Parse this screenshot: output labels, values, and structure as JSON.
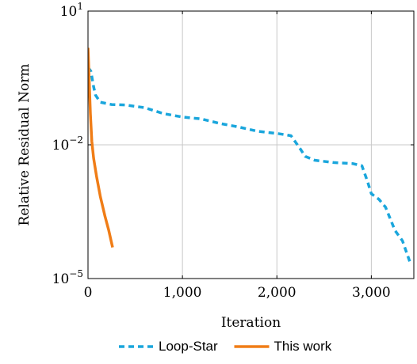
{
  "chart_data": {
    "type": "line",
    "xlabel": "Iteration",
    "ylabel": "Relative Residual Norm",
    "xlim": [
      0,
      3450
    ],
    "ylim": [
      1e-05,
      10
    ],
    "yscale": "log",
    "grid": true,
    "x_ticks": [
      {
        "value": 0,
        "label": "0"
      },
      {
        "value": 1000,
        "label": "1,000"
      },
      {
        "value": 2000,
        "label": "2,000"
      },
      {
        "value": 3000,
        "label": "3,000"
      }
    ],
    "y_ticks": [
      {
        "value": 10,
        "base": "10",
        "exp": "1"
      },
      {
        "value": 0.01,
        "base": "10",
        "exp": "−2"
      },
      {
        "value": 1e-05,
        "base": "10",
        "exp": "−5"
      }
    ],
    "legend_position": "bottom",
    "series": [
      {
        "name": "Loop-Star",
        "color": "#1aa6dc",
        "style": "dashed",
        "points": [
          [
            0,
            0.55
          ],
          [
            30,
            0.45
          ],
          [
            60,
            0.2
          ],
          [
            80,
            0.13
          ],
          [
            130,
            0.09
          ],
          [
            250,
            0.08
          ],
          [
            400,
            0.078
          ],
          [
            600,
            0.068
          ],
          [
            800,
            0.05
          ],
          [
            1000,
            0.042
          ],
          [
            1200,
            0.038
          ],
          [
            1400,
            0.03
          ],
          [
            1600,
            0.025
          ],
          [
            1800,
            0.02
          ],
          [
            2000,
            0.018
          ],
          [
            2150,
            0.016
          ],
          [
            2250,
            0.008
          ],
          [
            2300,
            0.0055
          ],
          [
            2400,
            0.0045
          ],
          [
            2600,
            0.004
          ],
          [
            2800,
            0.0038
          ],
          [
            2900,
            0.0034
          ],
          [
            2960,
            0.0015
          ],
          [
            3000,
            0.0008
          ],
          [
            3080,
            0.0006
          ],
          [
            3150,
            0.0004
          ],
          [
            3250,
            0.00012
          ],
          [
            3330,
            7e-05
          ],
          [
            3420,
            2e-05
          ]
        ]
      },
      {
        "name": "This work",
        "color": "#f07d17",
        "style": "solid",
        "points": [
          [
            0,
            1.5
          ],
          [
            5,
            0.8
          ],
          [
            15,
            0.2
          ],
          [
            25,
            0.05
          ],
          [
            40,
            0.012
          ],
          [
            60,
            0.005
          ],
          [
            90,
            0.002
          ],
          [
            130,
            0.0007
          ],
          [
            180,
            0.00025
          ],
          [
            220,
            0.00012
          ],
          [
            260,
            5e-05
          ]
        ]
      }
    ]
  }
}
